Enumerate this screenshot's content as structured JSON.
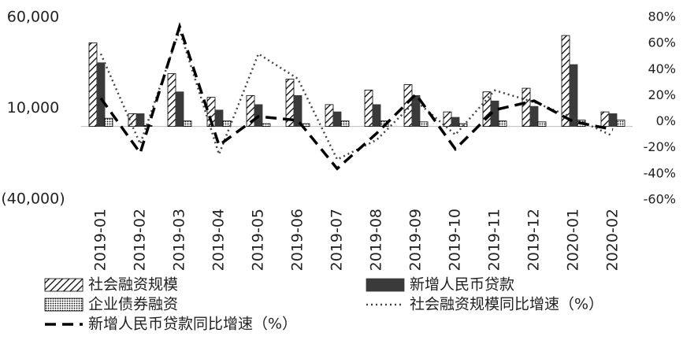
{
  "chart_data": {
    "type": "bar-line",
    "categories": [
      "2019-01",
      "2019-02",
      "2019-03",
      "2019-04",
      "2019-05",
      "2019-06",
      "2019-07",
      "2019-08",
      "2019-09",
      "2019-10",
      "2019-11",
      "2019-12",
      "2020-01",
      "2020-02"
    ],
    "series": [
      {
        "name": "社会融资规模",
        "color": "#000000",
        "fill": "hatch",
        "kind": "bar",
        "values": [
          46000,
          7000,
          29000,
          16000,
          17000,
          26000,
          12000,
          20000,
          23000,
          8000,
          19000,
          21000,
          50000,
          8000
        ]
      },
      {
        "name": "新增人民币贷款",
        "color": "#3a3a3a",
        "fill": "solid",
        "kind": "bar",
        "values": [
          35000,
          7000,
          19000,
          9000,
          12000,
          17000,
          8000,
          12000,
          17000,
          5000,
          14000,
          11000,
          34000,
          7000
        ]
      },
      {
        "name": "企业债券融资",
        "color": "#000000",
        "fill": "dots",
        "kind": "bar",
        "values": [
          4500,
          500,
          3000,
          3000,
          1500,
          1500,
          3000,
          3000,
          2500,
          1500,
          3000,
          2500,
          3500,
          3500
        ]
      },
      {
        "name": "社会融资规模同比增速（%）",
        "color": "#444444",
        "dash": "dotted",
        "kind": "line",
        "axis": "y2",
        "values": [
          52,
          -17,
          70,
          -25,
          52,
          33,
          -29,
          -14,
          16,
          -10,
          24,
          15,
          3,
          -11
        ]
      },
      {
        "name": "新增人民币贷款同比增速（%）",
        "color": "#000000",
        "dash": "dashed",
        "kind": "line",
        "axis": "y2",
        "values": [
          18,
          -24,
          73,
          -18,
          4,
          1,
          -36,
          -9,
          21,
          -21,
          9,
          16,
          0,
          -6
        ]
      }
    ],
    "ylim": [
      -40000,
      60000
    ],
    "yticks": [
      {
        "value": 60000,
        "label": "60,000"
      },
      {
        "value": 10000,
        "label": "10,000"
      },
      {
        "value": -40000,
        "label": "(40,000)"
      }
    ],
    "y2lim": [
      -60,
      80
    ],
    "y2ticks": [
      {
        "value": 80,
        "label": "80%"
      },
      {
        "value": 60,
        "label": "60%"
      },
      {
        "value": 40,
        "label": "40%"
      },
      {
        "value": 20,
        "label": "20%"
      },
      {
        "value": 0,
        "label": "0%"
      },
      {
        "value": -20,
        "label": "-20%"
      },
      {
        "value": -40,
        "label": "-40%"
      },
      {
        "value": -60,
        "label": "-60%"
      }
    ]
  }
}
